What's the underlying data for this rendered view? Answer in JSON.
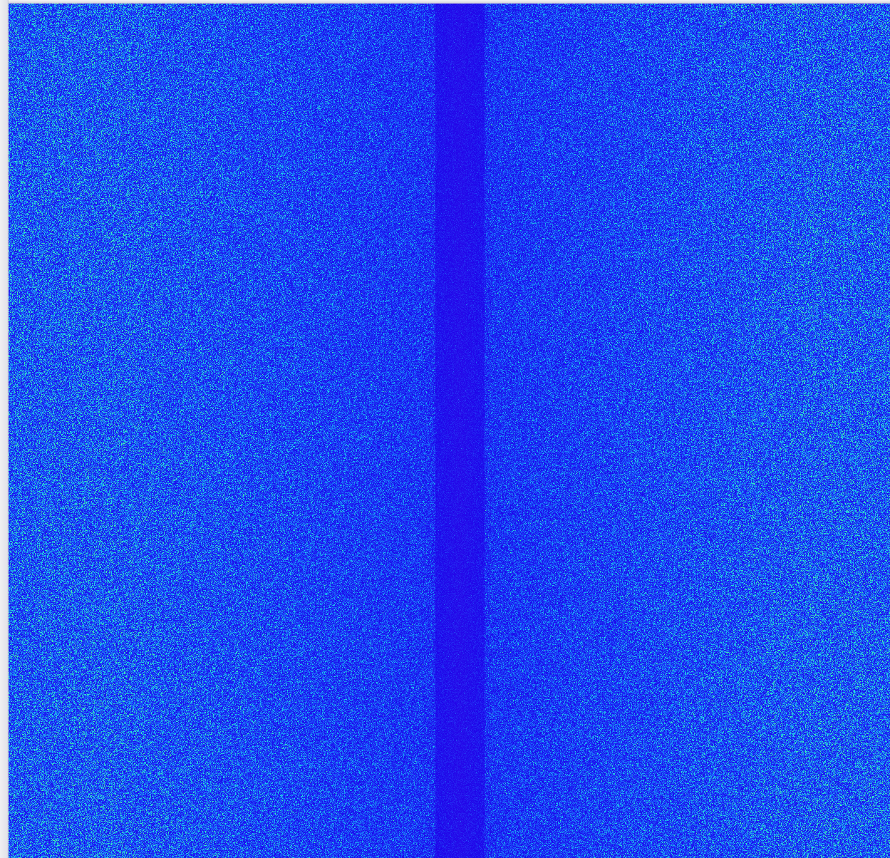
{
  "view": {
    "content": "noise-intensity-map",
    "colormap": [
      "#1a00e8",
      "#1e2cf2",
      "#1a55ff",
      "#1c8cf5",
      "#19c6ee",
      "#2be6d2",
      "#4ef09a"
    ],
    "background_color": "#1b1ff0",
    "center_band_color": "#2a12e6"
  }
}
